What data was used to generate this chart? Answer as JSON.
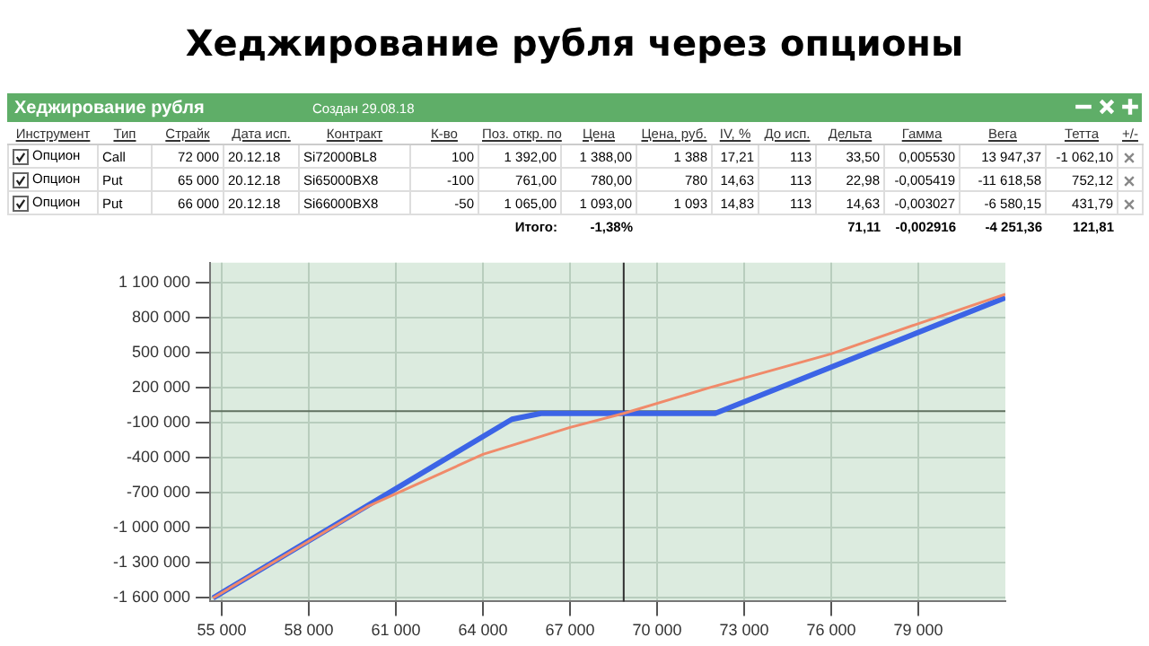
{
  "chart_data": {
    "type": "line",
    "title": "Хеджирование рубля через опционы",
    "annotations": [
      "Хеджирование рубля",
      "Создан 29.08.18",
      "Инструмент",
      "Тип",
      "Страйк",
      "Дата исп.",
      "Контракт",
      "К-во",
      "Поз. откр. по",
      "Цена",
      "Цена, руб.",
      "IV, %",
      "До исп.",
      "Дельта",
      "Гамма",
      "Вега",
      "Тетта",
      "+/-",
      "Опцион",
      "Call",
      "72 000",
      "20.12.18",
      "Si72000BL8",
      "100",
      "1 392,00",
      "1 388,00",
      "1 388",
      "17,21",
      "113",
      "33,50",
      "0,005530",
      "13 947,37",
      "-1 062,10",
      "Опцион",
      "Put",
      "65 000",
      "20.12.18",
      "Si65000BX8",
      "-100",
      "761,00",
      "780,00",
      "780",
      "14,63",
      "113",
      "22,98",
      "-0,005419",
      "-11 618,58",
      "752,12",
      "Опцион",
      "Put",
      "66 000",
      "20.12.18",
      "Si66000BX8",
      "-50",
      "1 065,00",
      "1 093,00",
      "1 093",
      "14,83",
      "113",
      "14,63",
      "-0,003027",
      "-6 580,15",
      "431,79",
      "Итого:",
      "-1,38%",
      "71,11",
      "-0,002916",
      "-4 251,36",
      "121,81"
    ],
    "series": [
      {
        "color": "#f08a6a",
        "x": [
          54700,
          60000,
          64000,
          67000,
          68850,
          71800,
          76000,
          78900,
          82000
        ],
        "values": [
          -1600000,
          -820000,
          -370000,
          -140000,
          -20000,
          200000,
          490000,
          740000,
          1000000
        ]
      },
      {
        "color": "#3c64e6",
        "x": [
          54700,
          65000,
          66000,
          72000,
          82000
        ],
        "values": [
          -1600000,
          -70000,
          -20000,
          -20000,
          970000
        ]
      }
    ],
    "xlim": [
      54600,
      82000
    ],
    "xticks": [
      {
        "value": 55000,
        "label": "55 000"
      },
      {
        "value": 58000,
        "label": "58 000"
      },
      {
        "value": 61000,
        "label": "61 000"
      },
      {
        "value": 64000,
        "label": "64 000"
      },
      {
        "value": 67000,
        "label": "67 000"
      },
      {
        "value": 70000,
        "label": "70 000"
      },
      {
        "value": 73000,
        "label": "73 000"
      },
      {
        "value": 76000,
        "label": "76 000"
      },
      {
        "value": 79000,
        "label": "79 000"
      }
    ],
    "ylim": [
      -1630000,
      1270000
    ],
    "yticks": [
      {
        "value": -1600000,
        "label": "-1 600 000"
      },
      {
        "value": -1300000,
        "label": "-1 300 000"
      },
      {
        "value": -1000000,
        "label": "-1 000 000"
      },
      {
        "value": -700000,
        "label": "-700 000"
      },
      {
        "value": -400000,
        "label": "-400 000"
      },
      {
        "value": -100000,
        "label": "-100 000"
      },
      {
        "value": 200000,
        "label": "200 000"
      },
      {
        "value": 500000,
        "label": "500 000"
      },
      {
        "value": 800000,
        "label": "800 000"
      },
      {
        "value": 1100000,
        "label": "1 100 000"
      }
    ],
    "ref_lines": [
      {
        "axis": "y",
        "value": 0,
        "color": "#607060"
      },
      {
        "axis": "x",
        "value": 68850,
        "color": "#303030"
      }
    ],
    "grid": true,
    "legend": false,
    "marker": "none"
  }
}
